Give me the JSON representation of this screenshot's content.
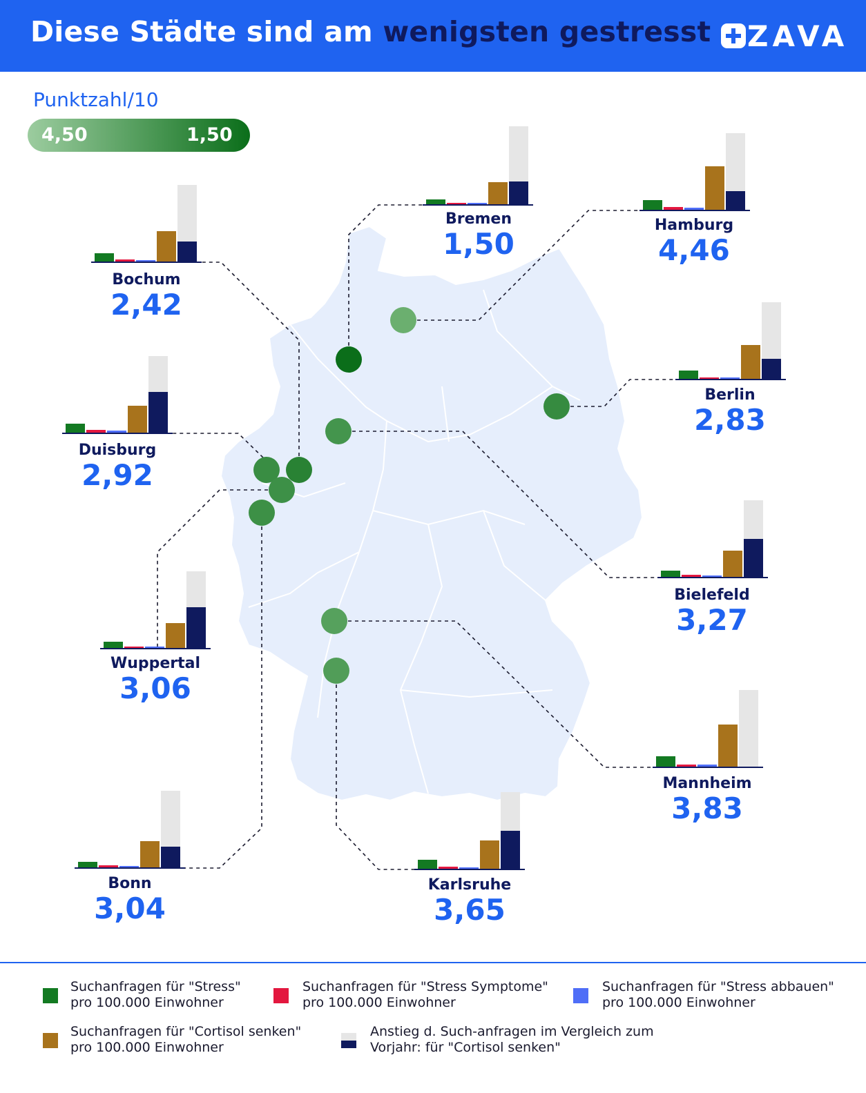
{
  "header": {
    "title_part1": "Diese Städte sind am ",
    "title_highlight": "wenigsten gestresst",
    "logo_text": "ZAVA"
  },
  "scale": {
    "title": "Punktzahl/10",
    "low_label": "4,50",
    "high_label": "1,50"
  },
  "colors": {
    "stress": "#137a22",
    "stress_symptome": "#e3173f",
    "stress_abbauen": "#4f6ef7",
    "cortisol_senken": "#a8731c",
    "anstieg_bg": "#e6e6e6",
    "anstieg": "#0f1a5e",
    "map": "#e6eefc",
    "accent": "#1f63f0"
  },
  "map_data": {
    "region": "Deutschland",
    "cities": [
      {
        "name": "Bremen",
        "score": "1,50",
        "score_value": 1.5,
        "lat": 53.08,
        "lon": 8.8
      },
      {
        "name": "Hamburg",
        "score": "4,46",
        "score_value": 4.46,
        "lat": 53.55,
        "lon": 9.99
      },
      {
        "name": "Bochum",
        "score": "2,42",
        "score_value": 2.42,
        "lat": 51.48,
        "lon": 7.22
      },
      {
        "name": "Berlin",
        "score": "2,83",
        "score_value": 2.83,
        "lat": 52.52,
        "lon": 13.4
      },
      {
        "name": "Duisburg",
        "score": "2,92",
        "score_value": 2.92,
        "lat": 51.43,
        "lon": 6.76
      },
      {
        "name": "Bielefeld",
        "score": "3,27",
        "score_value": 3.27,
        "lat": 52.02,
        "lon": 8.53
      },
      {
        "name": "Wuppertal",
        "score": "3,06",
        "score_value": 3.06,
        "lat": 51.26,
        "lon": 7.15
      },
      {
        "name": "Mannheim",
        "score": "3,83",
        "score_value": 3.83,
        "lat": 49.49,
        "lon": 8.47
      },
      {
        "name": "Bonn",
        "score": "3,04",
        "score_value": 3.04,
        "lat": 50.74,
        "lon": 7.1
      },
      {
        "name": "Karlsruhe",
        "score": "3,65",
        "score_value": 3.65,
        "lat": 49.01,
        "lon": 8.4
      }
    ]
  },
  "legend": [
    {
      "key": "stress",
      "line1": "Suchanfragen für \"Stress\"",
      "line2": "pro 100.000 Einwohner"
    },
    {
      "key": "stress_symptome",
      "line1": "Suchanfragen für \"Stress Symptome\"",
      "line2": "pro 100.000 Einwohner"
    },
    {
      "key": "stress_abbauen",
      "line1": "Suchanfragen für \"Stress abbauen\"",
      "line2": "pro 100.000 Einwohner"
    },
    {
      "key": "cortisol_senken",
      "line1": "Suchanfragen für \"Cortisol senken\"",
      "line2": "pro 100.000 Einwohner"
    },
    {
      "key": "anstieg",
      "line1": "Anstieg d. Such-anfragen im Vergleich zum",
      "line2": "Vorjahr: für \"Cortisol senken\""
    }
  ]
}
